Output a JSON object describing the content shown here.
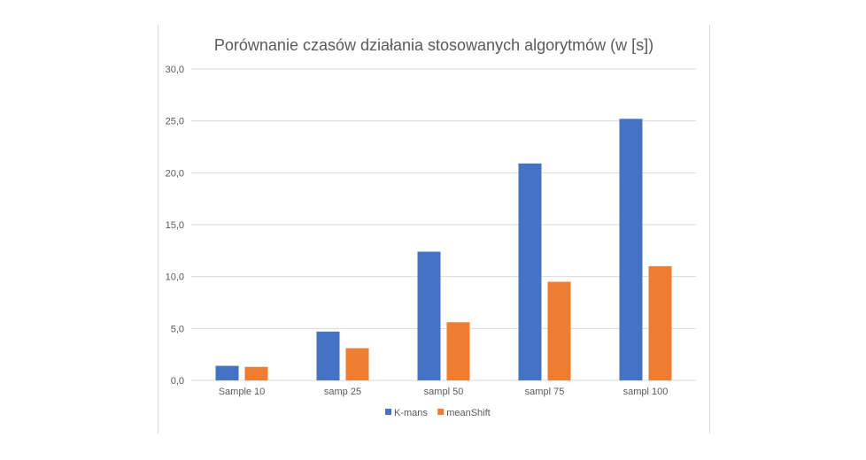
{
  "chart_data": {
    "type": "bar",
    "title": "Porównanie czasów działania stosowanych algorytmów (w [s])",
    "categories": [
      "Sample 10",
      "samp 25",
      "sampl 50",
      "sampl 75",
      "sampl 100"
    ],
    "series": [
      {
        "name": "K-mans",
        "values": [
          1.4,
          4.7,
          12.4,
          20.9,
          25.2
        ],
        "color": "#4472C4"
      },
      {
        "name": "meanShift",
        "values": [
          1.3,
          3.1,
          5.6,
          9.5,
          11.0
        ],
        "color": "#ED7D31"
      }
    ],
    "ylim": [
      0,
      30
    ],
    "yticks": [
      "0,0",
      "5,0",
      "10,0",
      "15,0",
      "20,0",
      "25,0",
      "30,0"
    ],
    "grid": true,
    "legend_position": "bottom"
  }
}
